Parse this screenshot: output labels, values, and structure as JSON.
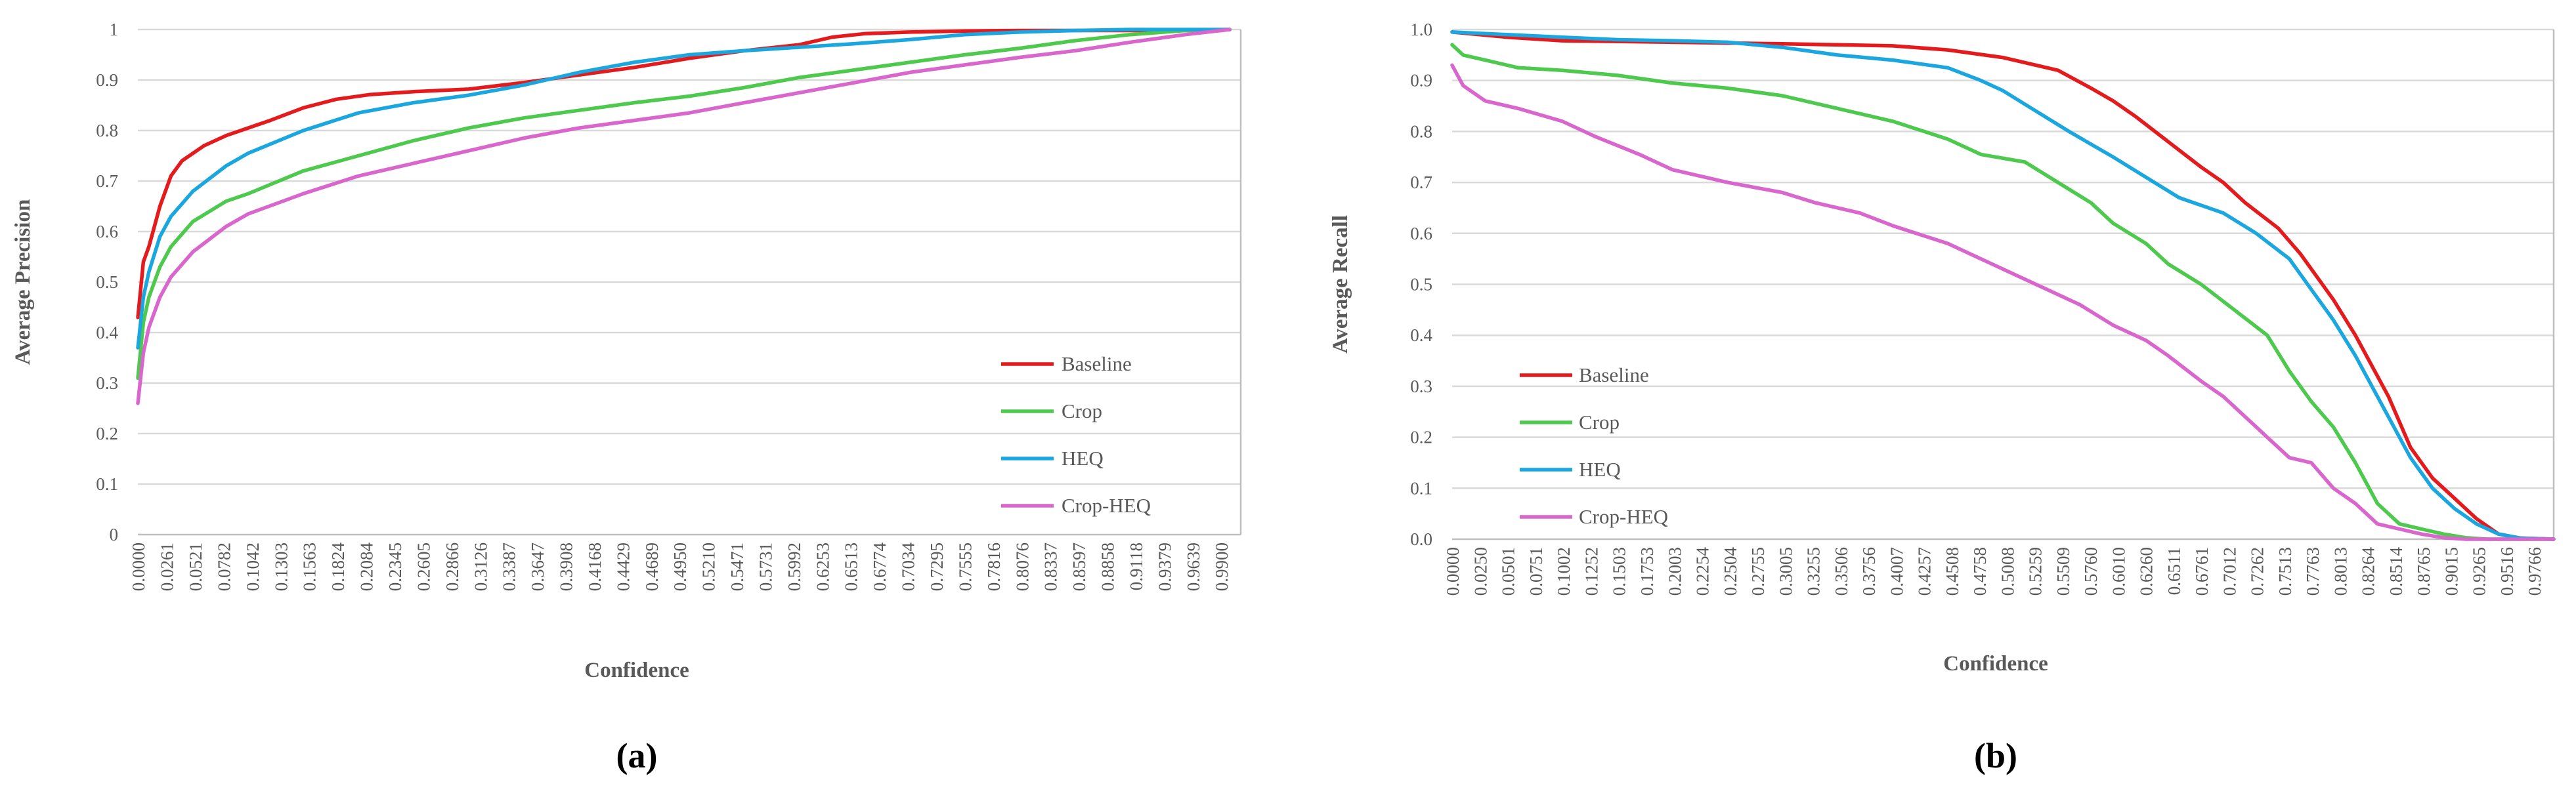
{
  "chart_data": [
    {
      "type": "line",
      "panel_label": "(a)",
      "title": "",
      "xlabel": "Confidence",
      "ylabel": "Average Precision",
      "ylim": [
        0,
        1
      ],
      "y_ticks": [
        "0",
        "0.1",
        "0.2",
        "0.3",
        "0.4",
        "0.5",
        "0.6",
        "0.7",
        "0.8",
        "0.9",
        "1"
      ],
      "x_ticks": [
        "0.0000",
        "0.0261",
        "0.0521",
        "0.0782",
        "0.1042",
        "0.1303",
        "0.1563",
        "0.1824",
        "0.2084",
        "0.2345",
        "0.2605",
        "0.2866",
        "0.3126",
        "0.3387",
        "0.3647",
        "0.3908",
        "0.4168",
        "0.4429",
        "0.4689",
        "0.4950",
        "0.5210",
        "0.5471",
        "0.5731",
        "0.5992",
        "0.6253",
        "0.6513",
        "0.6774",
        "0.7034",
        "0.7295",
        "0.7555",
        "0.7816",
        "0.8076",
        "0.8337",
        "0.8597",
        "0.8858",
        "0.9118",
        "0.9379",
        "0.9639",
        "0.9900"
      ],
      "grid": true,
      "legend_position": "bottom-right",
      "series": [
        {
          "name": "Baseline",
          "color": "#e41a1c",
          "x": [
            0.0,
            0.005,
            0.01,
            0.02,
            0.03,
            0.04,
            0.06,
            0.08,
            0.1,
            0.12,
            0.15,
            0.18,
            0.21,
            0.25,
            0.3,
            0.35,
            0.4,
            0.45,
            0.5,
            0.55,
            0.6,
            0.63,
            0.66,
            0.7,
            0.75,
            0.8,
            0.85,
            0.9,
            0.95,
            0.99
          ],
          "y": [
            0.43,
            0.54,
            0.57,
            0.65,
            0.71,
            0.74,
            0.77,
            0.79,
            0.805,
            0.82,
            0.845,
            0.862,
            0.871,
            0.877,
            0.882,
            0.895,
            0.91,
            0.925,
            0.943,
            0.958,
            0.97,
            0.985,
            0.992,
            0.995,
            0.997,
            0.998,
            0.998,
            0.998,
            0.998,
            1.0
          ]
        },
        {
          "name": "Crop",
          "color": "#4dc94d",
          "x": [
            0.0,
            0.005,
            0.01,
            0.02,
            0.03,
            0.05,
            0.08,
            0.1,
            0.15,
            0.2,
            0.25,
            0.3,
            0.35,
            0.4,
            0.45,
            0.5,
            0.55,
            0.6,
            0.65,
            0.7,
            0.75,
            0.8,
            0.85,
            0.9,
            0.95,
            0.99
          ],
          "y": [
            0.31,
            0.42,
            0.47,
            0.53,
            0.57,
            0.62,
            0.66,
            0.675,
            0.72,
            0.75,
            0.78,
            0.805,
            0.825,
            0.84,
            0.855,
            0.868,
            0.885,
            0.905,
            0.92,
            0.935,
            0.95,
            0.963,
            0.978,
            0.99,
            0.998,
            1.0
          ]
        },
        {
          "name": "HEQ",
          "color": "#1aa7e0",
          "x": [
            0.0,
            0.005,
            0.01,
            0.02,
            0.03,
            0.05,
            0.08,
            0.1,
            0.15,
            0.2,
            0.25,
            0.3,
            0.35,
            0.4,
            0.45,
            0.5,
            0.55,
            0.6,
            0.65,
            0.7,
            0.75,
            0.8,
            0.85,
            0.9,
            0.95,
            0.99
          ],
          "y": [
            0.37,
            0.47,
            0.52,
            0.59,
            0.63,
            0.68,
            0.73,
            0.755,
            0.8,
            0.835,
            0.855,
            0.87,
            0.89,
            0.915,
            0.935,
            0.95,
            0.958,
            0.965,
            0.972,
            0.98,
            0.99,
            0.995,
            0.998,
            1.0,
            1.0,
            1.0
          ]
        },
        {
          "name": "Crop-HEQ",
          "color": "#d966cc",
          "x": [
            0.0,
            0.005,
            0.01,
            0.02,
            0.03,
            0.05,
            0.08,
            0.1,
            0.15,
            0.2,
            0.25,
            0.3,
            0.35,
            0.4,
            0.45,
            0.5,
            0.55,
            0.6,
            0.65,
            0.7,
            0.75,
            0.8,
            0.85,
            0.9,
            0.95,
            0.99
          ],
          "y": [
            0.26,
            0.36,
            0.41,
            0.47,
            0.51,
            0.56,
            0.61,
            0.635,
            0.675,
            0.71,
            0.735,
            0.76,
            0.785,
            0.805,
            0.82,
            0.835,
            0.855,
            0.875,
            0.895,
            0.915,
            0.93,
            0.945,
            0.958,
            0.975,
            0.99,
            1.0
          ]
        }
      ]
    },
    {
      "type": "line",
      "panel_label": "(b)",
      "title": "",
      "xlabel": "Confidence",
      "ylabel": "Average Recall",
      "ylim": [
        0,
        1
      ],
      "y_ticks": [
        "0.0",
        "0.1",
        "0.2",
        "0.3",
        "0.4",
        "0.5",
        "0.6",
        "0.7",
        "0.8",
        "0.9",
        "1.0"
      ],
      "x_ticks": [
        "0.0000",
        "0.0250",
        "0.0501",
        "0.0751",
        "0.1002",
        "0.1252",
        "0.1503",
        "0.1753",
        "0.2003",
        "0.2254",
        "0.2504",
        "0.2755",
        "0.3005",
        "0.3255",
        "0.3506",
        "0.3756",
        "0.4007",
        "0.4257",
        "0.4508",
        "0.4758",
        "0.5008",
        "0.5259",
        "0.5509",
        "0.5760",
        "0.6010",
        "0.6260",
        "0.6511",
        "0.6761",
        "0.7012",
        "0.7262",
        "0.7513",
        "0.7763",
        "0.8013",
        "0.8264",
        "0.8514",
        "0.8765",
        "0.9015",
        "0.9265",
        "0.9516",
        "0.9766"
      ],
      "grid": true,
      "legend_position": "bottom-left",
      "series": [
        {
          "name": "Baseline",
          "color": "#e41a1c",
          "x": [
            0.0,
            0.05,
            0.1,
            0.2,
            0.3,
            0.35,
            0.4,
            0.45,
            0.5,
            0.55,
            0.58,
            0.6,
            0.62,
            0.65,
            0.68,
            0.7,
            0.72,
            0.75,
            0.77,
            0.8,
            0.82,
            0.85,
            0.87,
            0.89,
            0.91,
            0.93,
            0.95,
            0.97,
            1.0
          ],
          "y": [
            0.995,
            0.985,
            0.978,
            0.975,
            0.972,
            0.97,
            0.968,
            0.96,
            0.945,
            0.92,
            0.885,
            0.86,
            0.83,
            0.78,
            0.73,
            0.7,
            0.66,
            0.61,
            0.56,
            0.47,
            0.4,
            0.28,
            0.18,
            0.12,
            0.08,
            0.04,
            0.01,
            0.002,
            0.0
          ]
        },
        {
          "name": "Crop",
          "color": "#4dc94d",
          "x": [
            0.0,
            0.01,
            0.03,
            0.06,
            0.1,
            0.15,
            0.2,
            0.25,
            0.3,
            0.35,
            0.4,
            0.45,
            0.48,
            0.52,
            0.55,
            0.58,
            0.6,
            0.63,
            0.65,
            0.68,
            0.71,
            0.74,
            0.76,
            0.78,
            0.8,
            0.82,
            0.84,
            0.86,
            0.88,
            0.9,
            0.92,
            0.94,
            1.0
          ],
          "y": [
            0.97,
            0.95,
            0.94,
            0.925,
            0.92,
            0.91,
            0.895,
            0.885,
            0.87,
            0.845,
            0.82,
            0.785,
            0.755,
            0.74,
            0.7,
            0.66,
            0.62,
            0.58,
            0.54,
            0.5,
            0.45,
            0.4,
            0.33,
            0.27,
            0.22,
            0.15,
            0.07,
            0.03,
            0.02,
            0.01,
            0.003,
            0.0,
            0.0
          ]
        },
        {
          "name": "HEQ",
          "color": "#1aa7e0",
          "x": [
            0.0,
            0.05,
            0.1,
            0.15,
            0.2,
            0.25,
            0.3,
            0.35,
            0.4,
            0.45,
            0.48,
            0.5,
            0.53,
            0.56,
            0.6,
            0.63,
            0.66,
            0.7,
            0.73,
            0.76,
            0.78,
            0.8,
            0.82,
            0.85,
            0.87,
            0.89,
            0.91,
            0.93,
            0.95,
            0.97,
            1.0
          ],
          "y": [
            0.995,
            0.99,
            0.985,
            0.98,
            0.978,
            0.975,
            0.965,
            0.95,
            0.94,
            0.925,
            0.9,
            0.88,
            0.84,
            0.8,
            0.75,
            0.71,
            0.67,
            0.64,
            0.6,
            0.55,
            0.49,
            0.43,
            0.36,
            0.24,
            0.16,
            0.1,
            0.06,
            0.03,
            0.01,
            0.002,
            0.0
          ]
        },
        {
          "name": "Crop-HEQ",
          "color": "#d966cc",
          "x": [
            0.0,
            0.01,
            0.03,
            0.06,
            0.1,
            0.13,
            0.17,
            0.2,
            0.25,
            0.3,
            0.33,
            0.37,
            0.4,
            0.45,
            0.48,
            0.51,
            0.54,
            0.57,
            0.6,
            0.63,
            0.65,
            0.68,
            0.7,
            0.72,
            0.74,
            0.76,
            0.78,
            0.8,
            0.82,
            0.84,
            0.86,
            0.88,
            0.9,
            0.92,
            1.0
          ],
          "y": [
            0.93,
            0.89,
            0.86,
            0.845,
            0.82,
            0.79,
            0.755,
            0.725,
            0.7,
            0.68,
            0.66,
            0.64,
            0.615,
            0.58,
            0.55,
            0.52,
            0.49,
            0.46,
            0.42,
            0.39,
            0.36,
            0.31,
            0.28,
            0.24,
            0.2,
            0.16,
            0.15,
            0.1,
            0.07,
            0.03,
            0.02,
            0.01,
            0.003,
            0.0,
            0.0
          ]
        }
      ]
    }
  ]
}
